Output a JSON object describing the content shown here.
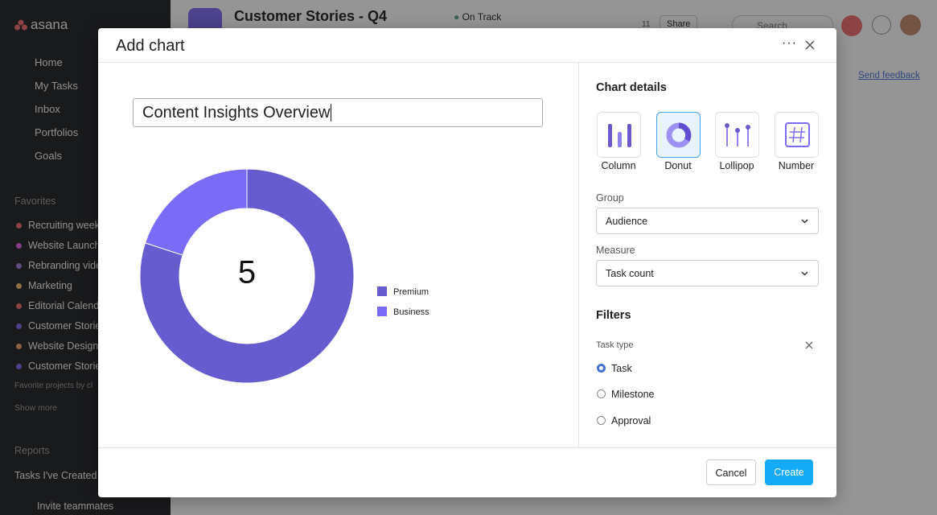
{
  "sidebar": {
    "logo": "asana",
    "nav": [
      "Home",
      "My Tasks",
      "Inbox",
      "Portfolios",
      "Goals"
    ],
    "favorites_title": "Favorites",
    "favorites": [
      "Recruiting week",
      "Website Launch",
      "Rebranding vide",
      "Marketing",
      "Editorial Calend",
      "Customer Storie",
      "Website Design",
      "Customer Storie"
    ],
    "favorites_note": "Favorite projects by cl",
    "show_more": "Show more",
    "reports_title": "Reports",
    "reports": [
      "Tasks I've Created"
    ],
    "invite": "Invite teammates"
  },
  "header": {
    "project": "Customer Stories - Q4",
    "status": "On Track",
    "member_count": "11",
    "share": "Share",
    "search": "Search",
    "send_feedback": "Send feedback"
  },
  "modal": {
    "title": "Add chart",
    "chart_name": "Content Insights Overview",
    "details_title": "Chart details",
    "chart_types": [
      "Column",
      "Donut",
      "Lollipop",
      "Number"
    ],
    "group_label": "Group",
    "group_value": "Audience",
    "measure_label": "Measure",
    "measure_value": "Task count",
    "filters_title": "Filters",
    "task_type_label": "Task type",
    "task_types": [
      "Task",
      "Milestone",
      "Approval"
    ],
    "cancel": "Cancel",
    "create": "Create"
  },
  "chart_data": {
    "type": "donut",
    "categories": [
      "Premium",
      "Business"
    ],
    "values": [
      4,
      1
    ],
    "colors": [
      "#665bcf",
      "#7b6cf7"
    ],
    "center_label": 5
  }
}
